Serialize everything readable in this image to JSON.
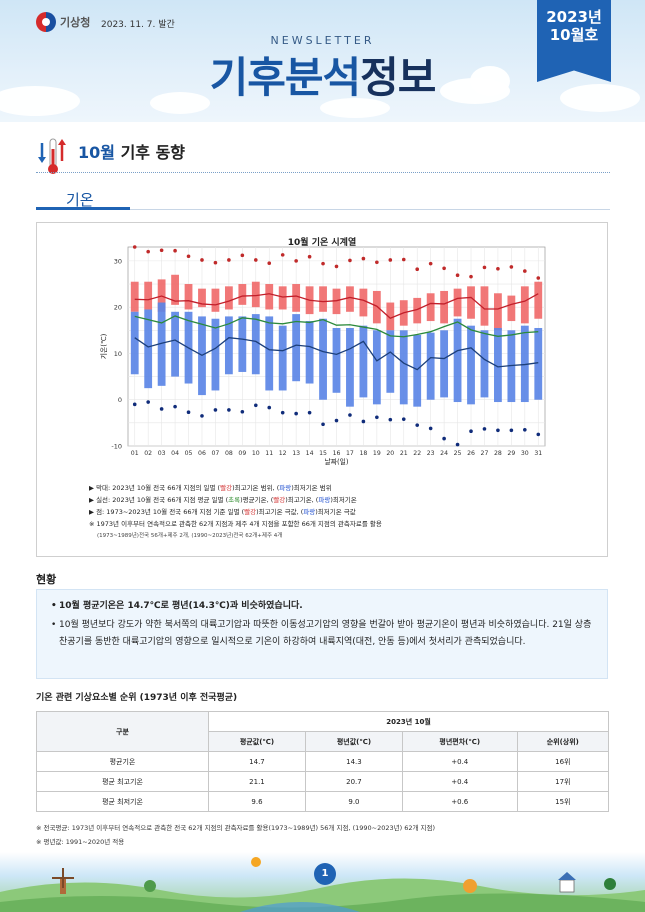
{
  "header": {
    "org_name": "기상청",
    "issue_date": "2023. 11. 7. 발간",
    "newsletter_label": "NEWSLETTER",
    "title_part1": "기후분석",
    "title_part2": "정보",
    "badge_year": "2023년",
    "badge_month": "10월호"
  },
  "section": {
    "month": "10월",
    "title": "기후 동향",
    "tab": "기온"
  },
  "chart_data": {
    "type": "bar",
    "title": "10월 기온 시계열",
    "xlabel": "날짜(일)",
    "ylabel": "기온(℃)",
    "ylim": [
      -10,
      33
    ],
    "yticks": [
      -10,
      0,
      10,
      20,
      30
    ],
    "grid": true,
    "categories": [
      "01",
      "02",
      "03",
      "04",
      "05",
      "06",
      "07",
      "08",
      "09",
      "10",
      "11",
      "12",
      "13",
      "14",
      "15",
      "16",
      "17",
      "18",
      "19",
      "20",
      "21",
      "22",
      "23",
      "24",
      "25",
      "26",
      "27",
      "28",
      "29",
      "30",
      "31"
    ],
    "series": [
      {
        "name": "최고기온 범위",
        "color": "#f06b6b",
        "low": [
          19.0,
          19.5,
          19.0,
          20.5,
          19.5,
          20.0,
          19.0,
          19.5,
          20.5,
          20.0,
          19.5,
          19.5,
          19.0,
          18.5,
          19.0,
          18.5,
          19.0,
          18.0,
          16.5,
          15.0,
          16.0,
          16.5,
          17.0,
          16.5,
          18.0,
          17.5,
          16.0,
          15.0,
          17.0,
          16.5,
          17.5
        ],
        "high": [
          25.5,
          25.5,
          26.0,
          27.0,
          25.0,
          24.0,
          24.0,
          24.5,
          25.0,
          25.5,
          25.0,
          24.5,
          25.0,
          24.5,
          24.5,
          24.0,
          24.5,
          24.0,
          23.5,
          21.0,
          21.5,
          22.0,
          23.0,
          23.5,
          24.0,
          24.5,
          24.5,
          23.0,
          22.5,
          24.5,
          25.5
        ]
      },
      {
        "name": "최저기온 범위",
        "color": "#5b86e6",
        "low": [
          5.5,
          2.5,
          3.0,
          5.0,
          3.5,
          1.0,
          2.0,
          5.5,
          6.0,
          5.5,
          2.0,
          2.0,
          4.0,
          3.5,
          0.0,
          1.5,
          -1.5,
          0.5,
          -1.0,
          1.5,
          -1.0,
          -1.5,
          0.0,
          0.5,
          -0.5,
          -1.0,
          0.5,
          -0.5,
          -0.5,
          -0.5,
          0.0
        ],
        "high": [
          19.0,
          19.5,
          21.0,
          19.0,
          19.0,
          18.0,
          17.5,
          18.0,
          18.0,
          18.5,
          18.0,
          16.0,
          18.5,
          17.0,
          17.5,
          15.5,
          15.5,
          16.0,
          15.0,
          15.0,
          15.0,
          14.0,
          14.5,
          15.0,
          17.5,
          16.0,
          15.0,
          15.5,
          15.0,
          16.0,
          15.5
        ]
      },
      {
        "name": "평균 최고기온",
        "color": "#c21f2a",
        "values": [
          21.7,
          21.6,
          22.4,
          21.3,
          21.4,
          20.7,
          20.5,
          21.3,
          22.4,
          22.5,
          22.9,
          22.2,
          22.4,
          21.5,
          21.2,
          21.4,
          22.1,
          21.5,
          20.2,
          17.6,
          18.8,
          19.5,
          20.8,
          20.7,
          21.9,
          22.1,
          19.6,
          19.6,
          20.6,
          21.3,
          22.9
        ]
      },
      {
        "name": "평균기온",
        "color": "#2c8a3c",
        "values": [
          18.0,
          17.3,
          16.6,
          18.1,
          17.1,
          16.3,
          15.5,
          16.4,
          17.7,
          17.4,
          16.6,
          16.4,
          16.9,
          16.7,
          17.3,
          16.1,
          16.2,
          15.7,
          15.2,
          13.8,
          13.6,
          14.1,
          14.7,
          15.8,
          16.8,
          15.1,
          14.3,
          13.7,
          14.0,
          14.5,
          14.7
        ]
      },
      {
        "name": "평균 최저기온",
        "color": "#1c3f7a",
        "values": [
          13.4,
          11.4,
          12.2,
          12.9,
          11.2,
          9.6,
          11.1,
          13.4,
          13.1,
          12.6,
          10.8,
          10.6,
          11.8,
          11.5,
          10.4,
          9.8,
          11.0,
          12.6,
          8.4,
          10.3,
          7.9,
          6.5,
          9.1,
          8.9,
          10.6,
          11.2,
          8.7,
          7.1,
          7.4,
          7.6,
          8.0
        ]
      },
      {
        "name": "최고기온 극값",
        "color": "#c02a2a",
        "values": [
          33.0,
          32.0,
          32.3,
          32.2,
          31.0,
          30.2,
          29.6,
          30.2,
          31.2,
          30.2,
          29.5,
          31.3,
          30.0,
          30.9,
          29.4,
          28.8,
          30.1,
          30.5,
          29.7,
          30.2,
          30.3,
          28.2,
          29.4,
          28.4,
          26.9,
          26.6,
          28.6,
          28.3,
          28.7,
          27.8,
          26.3
        ]
      },
      {
        "name": "최저기온 극값",
        "color": "#102c7a",
        "values": [
          -1.0,
          -0.5,
          -2.0,
          -1.5,
          -2.7,
          -3.5,
          -2.2,
          -2.2,
          -2.6,
          -1.2,
          -1.7,
          -2.8,
          -3.0,
          -2.8,
          -5.3,
          -4.5,
          -3.3,
          -4.7,
          -3.8,
          -4.3,
          -4.2,
          -5.5,
          -6.2,
          -8.4,
          -9.7,
          -6.8,
          -6.3,
          -6.6,
          -6.6,
          -6.5,
          -7.5
        ]
      }
    ]
  },
  "legend_notes": {
    "line1_pre": "▶ 막대: 2023년 10월 전국 66개 지점의 일별 (",
    "line1_red": "빨강",
    "line1_mid": ")최고기온 범위, (",
    "line1_blue": "파랑",
    "line1_post": ")최저기온 범위",
    "line2_pre": "▶ 실선: 2023년 10월 전국 66개 지점 평균 일별 (",
    "line2_green": "초록",
    "line2_mid1": ")평균기온, (",
    "line2_red": "빨강",
    "line2_mid2": ")최고기온, (",
    "line2_blue": "파랑",
    "line2_post": ")최저기온",
    "line3_pre": "▶ 점: 1973~2023년 10월 전국 66개 지점 기준 일별 (",
    "line3_red": "빨강",
    "line3_mid": ")최고기온 극값, (",
    "line3_blue": "파랑",
    "line3_post": ")최저기온 극값",
    "line4": "※ 1973년 이후부터 연속적으로 관측한 62개 지점과 제주 4개 지점을 포함한 66개 지점의 관측자료를 활용",
    "line5": "(1973~1989년)전국 56개+제주 2개, (1990~2023년)전국 62개+제주 4개"
  },
  "status": {
    "label": "현황",
    "point1": "10월 평균기온은 14.7℃로 평년(14.3℃)과 비슷하였습니다.",
    "point2": "10월 평년보다 강도가 약한 북서쪽의 대륙고기압과 따뜻한 이동성고기압의 영향을 번갈아 받아 평균기온이 평년과 비슷하였습니다. 21일 상층 찬공기를 동반한 대륙고기압의 영향으로 일시적으로 기온이 하강하여 내륙지역(대전, 안동 등)에서 첫서리가 관측되었습니다."
  },
  "table": {
    "title": "기온 관련 기상요소별 순위 (1973년 이후 전국평균)",
    "row_header": "구분",
    "group_header": "2023년 10월",
    "columns": [
      "평균값(℃)",
      "평년값(℃)",
      "평년편차(℃)",
      "순위(상위)"
    ],
    "rows": [
      {
        "label": "평균기온",
        "values": [
          "14.7",
          "14.3",
          "+0.4",
          "16위"
        ]
      },
      {
        "label": "평균 최고기온",
        "values": [
          "21.1",
          "20.7",
          "+0.4",
          "17위"
        ]
      },
      {
        "label": "평균 최저기온",
        "values": [
          "9.6",
          "9.0",
          "+0.6",
          "15위"
        ]
      }
    ],
    "note1": "※ 전국평균: 1973년 이후부터 연속적으로 관측한 전국 62개 지점의 관측자료를 활용(1973~1989년) 56개 지점, (1990~2023년) 62개 지점)",
    "note2": "※ 평년값: 1991~2020년 적용"
  },
  "footer": {
    "page_number": "1"
  }
}
